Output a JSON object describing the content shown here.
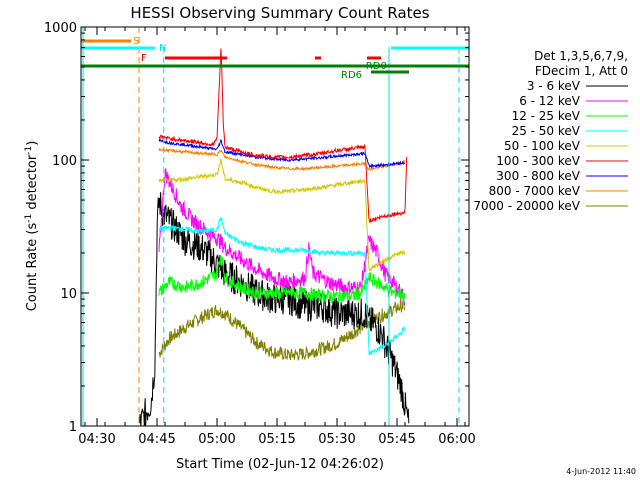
{
  "chart_data": {
    "type": "line",
    "title": "HESSI Observing Summary Count Rates",
    "xlabel": "Start Time (02-Jun-12 04:26:02)",
    "ylabel_main": "Count Rate (s",
    "ylabel_sup": "-1",
    "ylabel_mid": " detector",
    "ylabel_end": ")",
    "y_scale": "log",
    "ylim": [
      1,
      1000
    ],
    "xlim_minutes_after_0426": [
      0,
      97
    ],
    "x_tick_labels": [
      "04:30",
      "04:45",
      "05:00",
      "05:15",
      "05:30",
      "05:45",
      "06:00"
    ],
    "x_tick_minutes": [
      4,
      19,
      34,
      49,
      64,
      79,
      94
    ],
    "y_tick_labels": [
      "1",
      "10",
      "100",
      "1000"
    ],
    "y_tick_values": [
      1,
      10,
      100,
      1000
    ],
    "legend_header": [
      "Det 1,3,5,6,7,9,",
      "FDecim 1, Att 0"
    ],
    "series": [
      {
        "name": "3 - 6 keV",
        "color": "#000000"
      },
      {
        "name": "6 - 12 keV",
        "color": "#ff00ff"
      },
      {
        "name": "12 - 25 keV",
        "color": "#00ff00"
      },
      {
        "name": "25 - 50 keV",
        "color": "#00ffff"
      },
      {
        "name": "50 - 100 keV",
        "color": "#d4c800"
      },
      {
        "name": "100 - 300 keV",
        "color": "#ff0000"
      },
      {
        "name": "300 - 800 keV",
        "color": "#0000ff"
      },
      {
        "name": "800 - 7000 keV",
        "color": "#ff8000"
      },
      {
        "name": "7000 - 20000 keV",
        "color": "#808000"
      }
    ],
    "flag_labels": {
      "s": "S",
      "n": "N",
      "f": "F",
      "rd0": "RD0",
      "rd6": "RD6"
    },
    "timestamp": "4-Jun-2012 11:40",
    "legend_placement": "right"
  }
}
